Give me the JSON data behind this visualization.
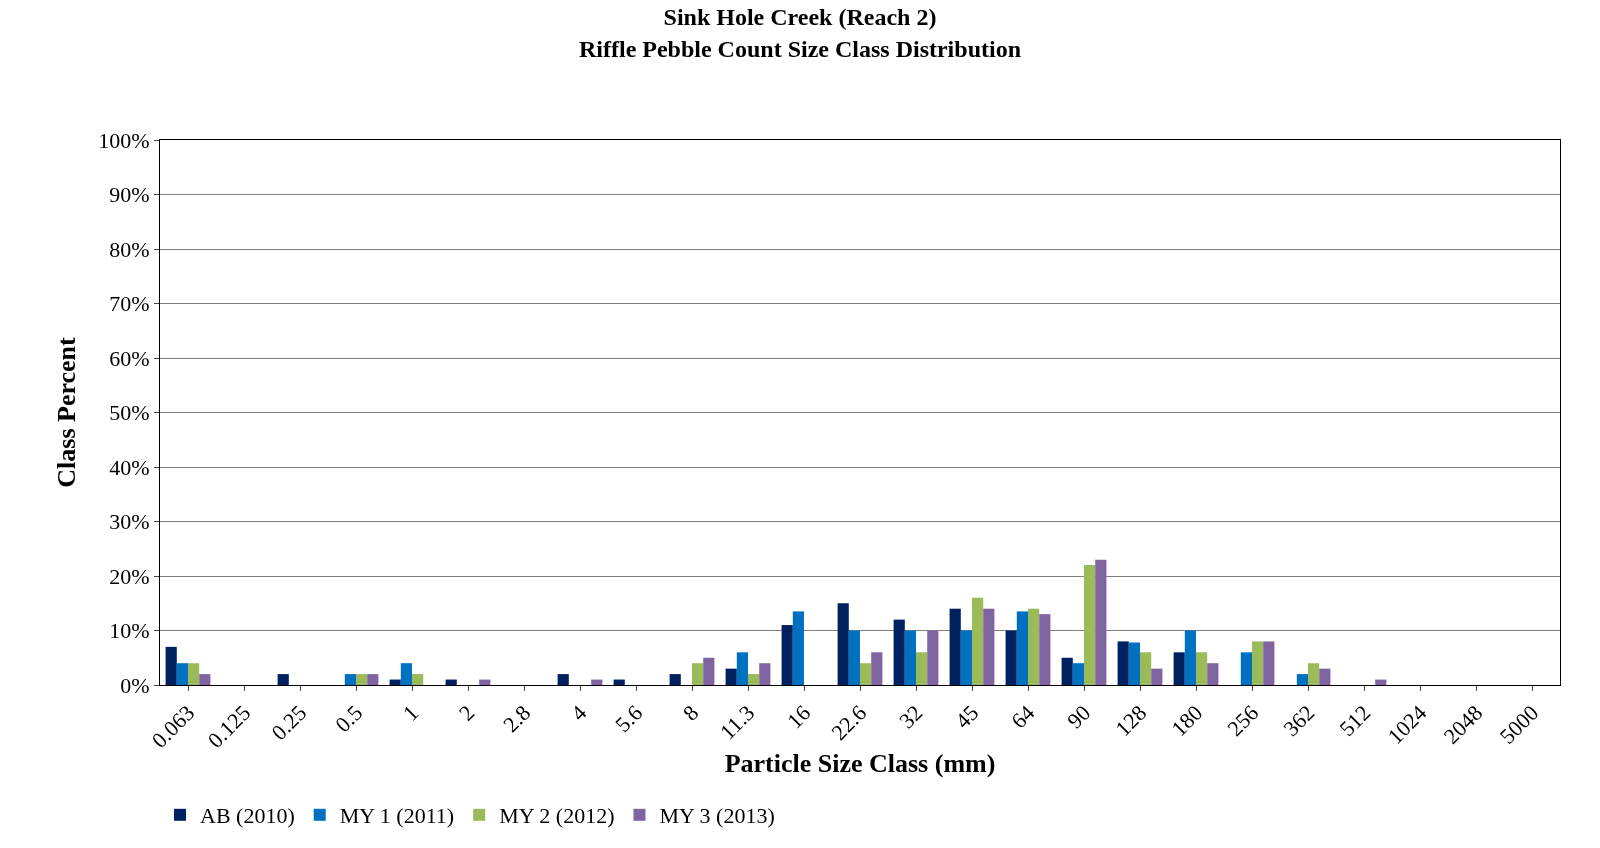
{
  "chart_data": {
    "type": "bar",
    "title": "Sink Hole Creek (Reach 2)\nRiffle Pebble Count Size Class Distribution",
    "xlabel": "Particle Size Class (mm)",
    "ylabel": "Class Percent",
    "categories": [
      "0.063",
      "0.125",
      "0.25",
      "0.5",
      "1",
      "2",
      "2.8",
      "4",
      "5.6",
      "8",
      "11.3",
      "16",
      "22.6",
      "32",
      "45",
      "64",
      "90",
      "128",
      "180",
      "256",
      "362",
      "512",
      "1024",
      "2048",
      "5000"
    ],
    "series": [
      {
        "name": "AB (2010)",
        "color": "#002060",
        "values": [
          7,
          0,
          2,
          0,
          1,
          1,
          0,
          2,
          1,
          2,
          3,
          11,
          15,
          12,
          14,
          10,
          5,
          8,
          6,
          0,
          0,
          0,
          0,
          0,
          0
        ]
      },
      {
        "name": "MY 1 (2011)",
        "color": "#0070c0",
        "values": [
          4,
          0,
          0,
          2,
          4,
          0,
          0,
          0,
          0,
          0,
          6,
          13.5,
          10,
          10,
          10,
          13.5,
          4,
          7.8,
          10,
          6,
          2,
          0,
          0,
          0,
          0
        ]
      },
      {
        "name": "MY 2 (2012)",
        "color": "#9bbb59",
        "values": [
          4,
          0,
          0,
          2,
          2,
          0,
          0,
          0,
          0,
          4,
          2,
          0,
          4,
          6,
          16,
          14,
          22,
          6,
          6,
          8,
          4,
          0,
          0,
          0,
          0
        ]
      },
      {
        "name": "MY 3 (2013)",
        "color": "#8064a2",
        "values": [
          2,
          0,
          0,
          2,
          0,
          1,
          0,
          1,
          0,
          5,
          4,
          0,
          6,
          10,
          14,
          13,
          23,
          3,
          4,
          8,
          3,
          1,
          0,
          0,
          0
        ]
      }
    ],
    "ylim": [
      0,
      100
    ],
    "yticks": [
      {
        "value": 0,
        "label": "0%"
      },
      {
        "value": 10,
        "label": "10%"
      },
      {
        "value": 20,
        "label": "20%"
      },
      {
        "value": 30,
        "label": "30%"
      },
      {
        "value": 40,
        "label": "40%"
      },
      {
        "value": 50,
        "label": "50%"
      },
      {
        "value": 60,
        "label": "60%"
      },
      {
        "value": 70,
        "label": "70%"
      },
      {
        "value": 80,
        "label": "80%"
      },
      {
        "value": 90,
        "label": "90%"
      },
      {
        "value": 100,
        "label": "100%"
      }
    ],
    "grid": "y",
    "legend": "bottom left"
  }
}
